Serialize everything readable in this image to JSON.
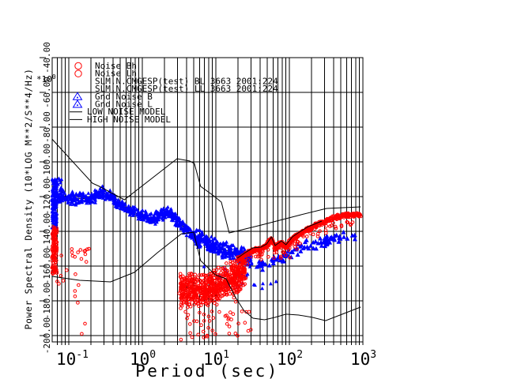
{
  "colors": {
    "red": "#ff0000",
    "blue": "#0000ff",
    "line": "#000000",
    "background": "#ffffff"
  },
  "legend": {
    "entries": [
      {
        "symbol": "circle",
        "color": "#ff0000",
        "label": "Noise Bh"
      },
      {
        "symbol": "circle",
        "color": "#ff0000",
        "label": "Noise Lh"
      },
      {
        "symbol": "none",
        "color": "#000000",
        "label": "SLM.N.CMGESP(test) BL 3663 2001:224"
      },
      {
        "symbol": "none",
        "color": "#000000",
        "label": "SLM.N.CMGESP(test) LL 3663 2001:224"
      },
      {
        "symbol": "triangle",
        "color": "#0000ff",
        "label": "Gnd Noise B"
      },
      {
        "symbol": "triangle",
        "color": "#0000ff",
        "label": "Gnd Noise L"
      },
      {
        "symbol": "line",
        "color": "#000000",
        "label": "LOW NOISE MODEL"
      },
      {
        "symbol": "line",
        "color": "#000000",
        "label": "HIGH NOISE MODEL"
      }
    ]
  },
  "chart_data": {
    "type": "scatter",
    "title": "",
    "xlabel": "Period (sec)",
    "ylabel": "Power Spectral Density (10*LOG M**2/S**4/Hz)",
    "y_multiplier": "*10^0",
    "xscale": "log",
    "xlim": [
      0.06,
      1000
    ],
    "ylim": [
      -203.6,
      -40
    ],
    "x_ticks": [
      {
        "label": "10^-1",
        "period": 0.1
      },
      {
        "label": "10^0",
        "period": 1
      },
      {
        "label": "10^1",
        "period": 10
      },
      {
        "label": "10^2",
        "period": 100
      },
      {
        "label": "10^3",
        "period": 1000
      }
    ],
    "y_tick_labels": [
      "-40.00",
      "-60.00",
      "-80.00",
      "-100.00",
      "-120.00",
      "-140.00",
      "-160.00",
      "-180.00",
      "-200.00"
    ],
    "y_tick_values": [
      -40,
      -60,
      -80,
      -100,
      -120,
      -140,
      -160,
      -180,
      -200
    ],
    "grid": {
      "pre_decade_periods": [
        0.07,
        0.08,
        0.09
      ],
      "decades": [
        -1,
        0,
        1,
        2
      ],
      "multipliers": [
        1,
        2,
        3,
        4,
        5,
        6,
        7,
        8,
        9
      ]
    },
    "lines": [
      {
        "id": "hnm",
        "name": "HIGH NOISE MODEL",
        "layer": "over",
        "points": [
          [
            0.059,
            -86.8
          ],
          [
            0.21,
            -112.3
          ],
          [
            0.26,
            -114.1
          ],
          [
            0.57,
            -121.8
          ],
          [
            2.97,
            -98.2
          ],
          [
            4.4,
            -99.5
          ],
          [
            5.1,
            -100.9
          ],
          [
            6.2,
            -114.1
          ],
          [
            9.3,
            -119.5
          ],
          [
            11.9,
            -123.2
          ],
          [
            15.2,
            -140.9
          ],
          [
            41,
            -136.4
          ],
          [
            142,
            -130.5
          ],
          [
            320,
            -126.8
          ],
          [
            934,
            -125.9
          ]
        ]
      },
      {
        "id": "lnm",
        "name": "LOW NOISE MODEL",
        "layer": "over",
        "points": [
          [
            0.059,
            -165.9
          ],
          [
            0.14,
            -168.2
          ],
          [
            0.37,
            -169.1
          ],
          [
            0.78,
            -163.6
          ],
          [
            1.6,
            -152.3
          ],
          [
            3.4,
            -141.4
          ],
          [
            5.0,
            -140.5
          ],
          [
            6.2,
            -156.8
          ],
          [
            9.8,
            -165.0
          ],
          [
            13.8,
            -167.3
          ],
          [
            18.6,
            -178.2
          ],
          [
            24,
            -185.5
          ],
          [
            32,
            -190.0
          ],
          [
            46,
            -190.9
          ],
          [
            64,
            -189.5
          ],
          [
            90,
            -187.7
          ],
          [
            134,
            -188.2
          ],
          [
            204,
            -189.5
          ],
          [
            311,
            -191.4
          ],
          [
            550,
            -187.3
          ],
          [
            934,
            -183.6
          ]
        ]
      },
      {
        "id": "slm_bl",
        "name": "SLM.N.CMGESP(test) BL 3663 2001:224",
        "layer": "under",
        "points": [
          [
            0.069,
            -120.5
          ],
          [
            0.095,
            -121
          ],
          [
            0.138,
            -121
          ],
          [
            0.2,
            -121.4
          ],
          [
            0.276,
            -117
          ],
          [
            0.328,
            -118.6
          ],
          [
            0.42,
            -122.3
          ],
          [
            0.58,
            -126.4
          ],
          [
            0.82,
            -129.5
          ],
          [
            1.16,
            -131.8
          ],
          [
            1.48,
            -132.7
          ],
          [
            1.86,
            -130
          ],
          [
            2.26,
            -129.1
          ],
          [
            2.69,
            -131.4
          ],
          [
            3.3,
            -135.5
          ],
          [
            4.0,
            -139.5
          ],
          [
            5.0,
            -142.7
          ],
          [
            6.4,
            -145
          ],
          [
            8.2,
            -147.7
          ],
          [
            11.3,
            -150.5
          ],
          [
            15.9,
            -151.4
          ],
          [
            22,
            -153.6
          ],
          [
            30.3,
            -155.5
          ]
        ]
      },
      {
        "id": "slm_ll",
        "name": "SLM.N.CMGESP(test) LL 3663 2001:224",
        "layer": "over",
        "points": [
          [
            19.5,
            -155.5
          ],
          [
            25,
            -152.3
          ],
          [
            32,
            -149.5
          ],
          [
            41,
            -149.1
          ],
          [
            49,
            -147.3
          ],
          [
            57,
            -143.2
          ],
          [
            64,
            -148.2
          ],
          [
            78,
            -145.5
          ],
          [
            90,
            -147.7
          ],
          [
            110,
            -143.2
          ],
          [
            142,
            -140.0
          ],
          [
            180,
            -137.3
          ],
          [
            229,
            -135.5
          ],
          [
            276,
            -134.1
          ]
        ]
      }
    ],
    "clusters": [
      {
        "series": "Gnd Noise B",
        "marker": "triangle",
        "color": "#0000ff",
        "mode": "rect",
        "t": [
          0.059,
          0.069
        ],
        "v": [
          -110,
          -138
        ],
        "count": 140,
        "size": 2.6,
        "bias": 1
      },
      {
        "series": "Gnd Noise B",
        "marker": "triangle",
        "color": "#0000ff",
        "mode": "rect",
        "t": [
          0.066,
          0.085
        ],
        "v": [
          -109,
          -122
        ],
        "count": 20,
        "size": 2.6,
        "bias": 1
      },
      {
        "series": "Gnd Noise B",
        "marker": "triangle",
        "color": "#0000ff",
        "mode": "path",
        "ref": "slm_bl",
        "seg": [
          0,
          16
        ],
        "half_db": 4.0,
        "count": 560,
        "size": 2.6
      },
      {
        "series": "Gnd Noise L",
        "marker": "triangle",
        "color": "#0000ff",
        "mode": "path",
        "ref": "slm_bl",
        "seg": [
          16,
          22
        ],
        "half_db": 5.5,
        "count": 340,
        "size": 2.6
      },
      {
        "series": "Gnd Noise L",
        "marker": "triangle",
        "color": "#0000ff",
        "mode": "path",
        "half_db": 4.0,
        "count": 92,
        "size": 3.2,
        "points": [
          [
            36,
            -159.5
          ],
          [
            52,
            -157.7
          ],
          [
            75,
            -155.9
          ],
          [
            107,
            -152.7
          ],
          [
            155,
            -149.5
          ],
          [
            223,
            -147.3
          ],
          [
            322,
            -145.5
          ],
          [
            464,
            -143.6
          ],
          [
            668,
            -142.7
          ],
          [
            838,
            -143.6
          ]
        ]
      },
      {
        "series": "Gnd Noise L",
        "marker": "triangle",
        "color": "#0000ff",
        "mode": "rect",
        "t": [
          6.4,
          70
        ],
        "v": [
          -158,
          -173
        ],
        "count": 26,
        "size": 2.6,
        "bias": 1
      },
      {
        "series": "Noise Bh",
        "marker": "circle",
        "color": "#ff0000",
        "mode": "rect",
        "t": [
          0.059,
          0.069
        ],
        "v": [
          -137.5,
          -164.5
        ],
        "count": 130,
        "size": 1.8,
        "bias": 1
      },
      {
        "series": "Noise Bh",
        "marker": "circle",
        "color": "#ff0000",
        "mode": "rect",
        "t": [
          0.069,
          0.19
        ],
        "v": [
          -150,
          -200
        ],
        "count": 26,
        "size": 1.8,
        "bias": 2
      },
      {
        "series": "Noise Lh",
        "marker": "circle",
        "color": "#ff0000",
        "mode": "path",
        "half_db": 11,
        "count": 700,
        "size": 1.8,
        "points": [
          [
            3.28,
            -174
          ],
          [
            4.4,
            -173.2
          ],
          [
            6.4,
            -174.5
          ],
          [
            9.3,
            -172.3
          ],
          [
            13.5,
            -169.5
          ],
          [
            18.6,
            -165.5
          ],
          [
            25,
            -162.3
          ]
        ]
      },
      {
        "series": "Noise Lh",
        "marker": "circle",
        "color": "#ff0000",
        "mode": "rect",
        "t": [
          3.4,
          30
        ],
        "v": [
          -186,
          -202.5
        ],
        "count": 42,
        "size": 1.8,
        "bias": 2
      },
      {
        "series": "Noise Lh",
        "marker": "circle",
        "color": "#ff0000",
        "mode": "path",
        "half_db": 1.6,
        "count": 650,
        "size": 1.8,
        "points": [
          [
            19.5,
            -156.8
          ],
          [
            25,
            -153.6
          ],
          [
            32,
            -150.9
          ],
          [
            41,
            -150.5
          ],
          [
            49,
            -148.2
          ],
          [
            57,
            -144.5
          ],
          [
            64,
            -149.5
          ],
          [
            78,
            -146.8
          ],
          [
            90,
            -149.1
          ],
          [
            110,
            -144.5
          ],
          [
            142,
            -141.4
          ],
          [
            180,
            -138.6
          ],
          [
            229,
            -136.4
          ],
          [
            311,
            -134.1
          ],
          [
            430,
            -131.8
          ],
          [
            594,
            -130.9
          ],
          [
            805,
            -130.5
          ],
          [
            934,
            -130.9
          ]
        ]
      },
      {
        "series": "Noise Lh",
        "marker": "circle",
        "color": "#ff0000",
        "mode": "path",
        "half_db": 5,
        "dv": -4,
        "count": 70,
        "size": 1.8,
        "points": [
          [
            19.5,
            -156.8
          ],
          [
            32,
            -150.9
          ],
          [
            49,
            -148.2
          ],
          [
            64,
            -149.5
          ],
          [
            90,
            -149.1
          ],
          [
            142,
            -141.4
          ],
          [
            229,
            -136.4
          ],
          [
            430,
            -131.8
          ],
          [
            805,
            -130.5
          ]
        ]
      },
      {
        "series": "Noise Lh",
        "marker": "circle",
        "color": "#ff0000",
        "mode": "explicit",
        "size": 1.8,
        "points": [
          [
            17.6,
            -178.2
          ],
          [
            18.6,
            -180.5
          ],
          [
            4.75,
            -200.9
          ],
          [
            3.36,
            -202.3
          ],
          [
            7.6,
            -200
          ]
        ]
      }
    ]
  }
}
